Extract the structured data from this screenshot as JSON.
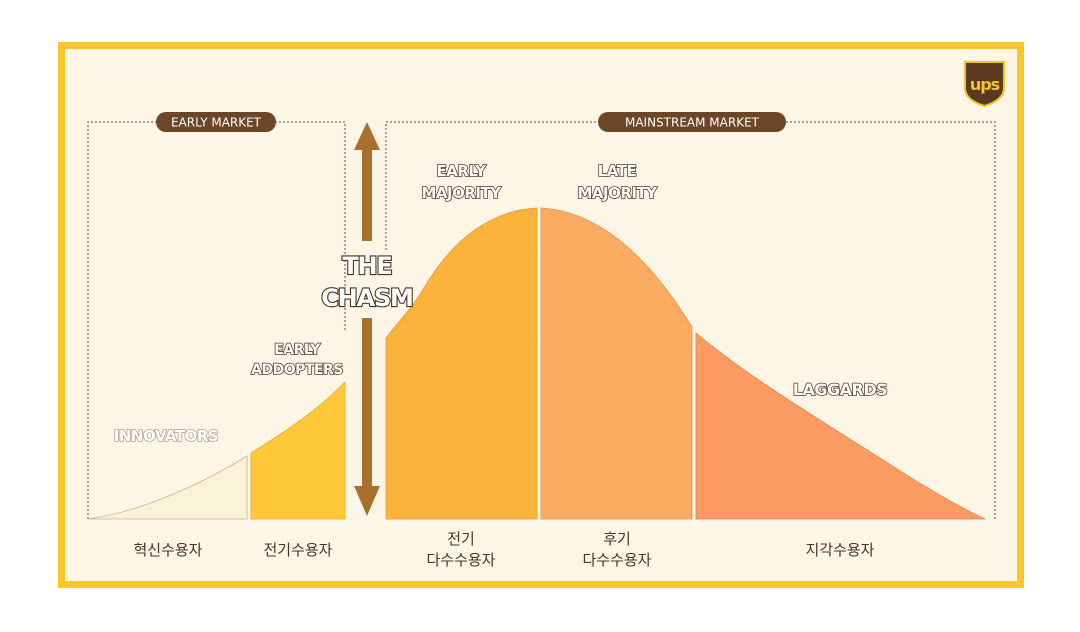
{
  "brand": {
    "logo_text": "ups"
  },
  "markets": {
    "early": "EARLY MARKET",
    "mainstream": "MAINSTREAM MARKET"
  },
  "chasm": {
    "line1": "THE",
    "line2": "CHASM"
  },
  "segments": [
    {
      "label_en": [
        "INNOVATORS"
      ],
      "label_kr": [
        "혁신수용자"
      ],
      "color": "#faf1d9"
    },
    {
      "label_en": [
        "EARLY",
        "ADDOPTERS"
      ],
      "label_kr": [
        "전기수용자"
      ],
      "color": "#fdc93a"
    },
    {
      "label_en": [
        "EARLY",
        "MAJORITY"
      ],
      "label_kr": [
        "전기",
        "다수수용자"
      ],
      "color": "#fbb33c"
    },
    {
      "label_en": [
        "LATE",
        "MAJORITY"
      ],
      "label_kr": [
        "후기",
        "다수수용자"
      ],
      "color": "#fbab62"
    },
    {
      "label_en": [
        "LAGGARDS"
      ],
      "label_kr": [
        "지각수용자"
      ],
      "color": "#fb9a63"
    }
  ],
  "colors": {
    "frame": "#f8c72a",
    "background": "#fdf5e6",
    "accent_brown": "#6b4628",
    "arrow": "#a8702f"
  }
}
